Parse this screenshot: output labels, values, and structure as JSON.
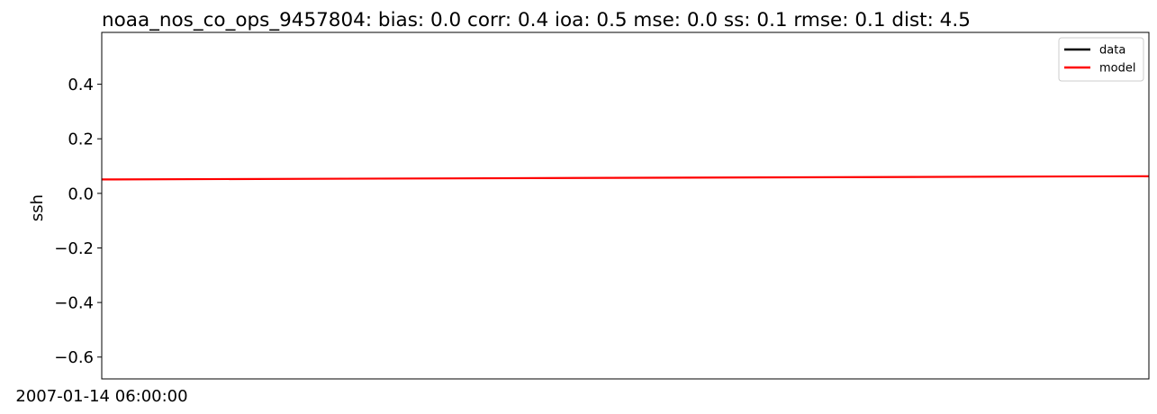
{
  "chart_data": {
    "type": "line",
    "title": "noaa_nos_co_ops_9457804: bias: 0.0  corr: 0.4  ioa: 0.5  mse: 0.0  ss: 0.1  rmse: 0.1  dist: 4.5",
    "xlabel": "",
    "ylabel": "ssh",
    "x_tick_labels": [
      "2007-01-14 06:00:00"
    ],
    "yticks": [
      -0.6,
      -0.4,
      -0.2,
      0.0,
      0.2,
      0.4
    ],
    "ytick_labels": [
      "−0.6",
      "−0.4",
      "−0.2",
      "0.0",
      "0.2",
      "0.4"
    ],
    "ylim": [
      -0.68,
      0.59
    ],
    "xlim": [
      0,
      1
    ],
    "grid": false,
    "legend_position": "top-right",
    "series": [
      {
        "name": "data",
        "color": "#000000",
        "x": [],
        "y": []
      },
      {
        "name": "model",
        "color": "#ff0000",
        "x": [
          0,
          1
        ],
        "y": [
          0.051,
          0.063
        ]
      }
    ]
  }
}
